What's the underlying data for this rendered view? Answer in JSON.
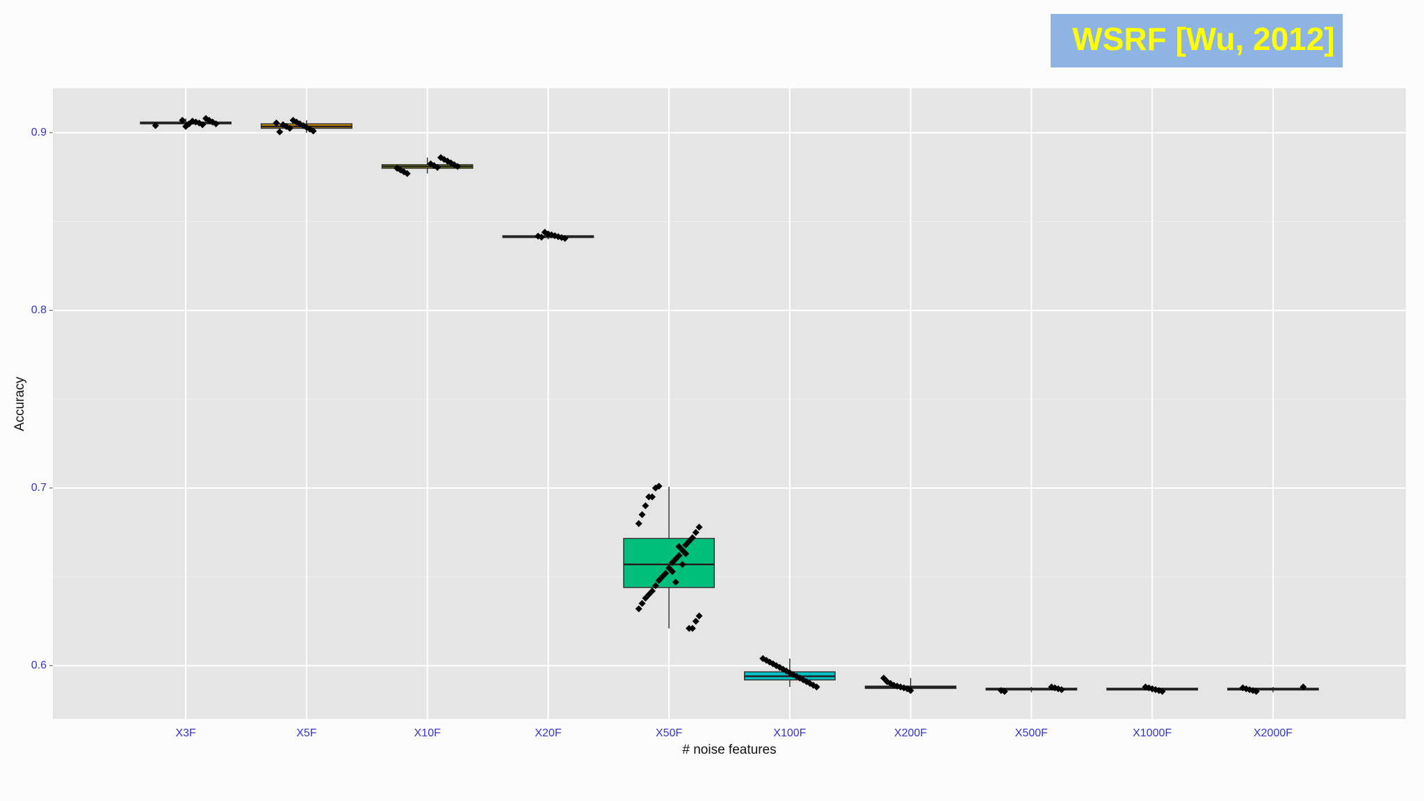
{
  "chart_data": {
    "type": "box",
    "badge": "WSRF [Wu, 2012]",
    "y_label": "Accuracy",
    "x_label": "# noise features",
    "categories": [
      "X3F",
      "X5F",
      "X10F",
      "X20F",
      "X50F",
      "X100F",
      "X200F",
      "X500F",
      "X1000F",
      "X2000F"
    ],
    "ylim": [
      0.57,
      0.925
    ],
    "yticks": [
      0.6,
      0.7,
      0.8,
      0.9
    ],
    "minor_yticks": [
      0.65,
      0.75,
      0.85
    ],
    "grid": true,
    "boxes": [
      {
        "color": "#F8766D",
        "min": 0.903,
        "q1": 0.905,
        "median": 0.9055,
        "q3": 0.906,
        "max": 0.908,
        "points": [
          0.904,
          0.905,
          0.906,
          0.907,
          0.908,
          0.9045,
          0.9055,
          0.906,
          0.9065,
          0.905,
          0.9035,
          0.907
        ]
      },
      {
        "color": "#D89000",
        "min": 0.9,
        "q1": 0.9025,
        "median": 0.9035,
        "q3": 0.905,
        "max": 0.907,
        "points": [
          0.901,
          0.902,
          0.903,
          0.904,
          0.905,
          0.906,
          0.907,
          0.9025,
          0.9035,
          0.9045,
          0.9005,
          0.9055
        ]
      },
      {
        "color": "#A3A500",
        "min": 0.877,
        "q1": 0.88,
        "median": 0.881,
        "q3": 0.882,
        "max": 0.886,
        "points": [
          0.877,
          0.878,
          0.879,
          0.88,
          0.881,
          0.882,
          0.883,
          0.884,
          0.885,
          0.886,
          0.8805,
          0.8815,
          0.8825
        ]
      },
      {
        "color": "#39B600",
        "min": 0.84,
        "q1": 0.841,
        "median": 0.8415,
        "q3": 0.842,
        "max": 0.844,
        "points": [
          0.8405,
          0.841,
          0.8415,
          0.842,
          0.8425,
          0.843,
          0.844,
          0.8412,
          0.8418
        ]
      },
      {
        "color": "#00BF7D",
        "min": 0.621,
        "q1": 0.644,
        "median": 0.657,
        "q3": 0.6716,
        "max": 0.7007,
        "points": [
          0.701,
          0.7,
          0.695,
          0.695,
          0.69,
          0.685,
          0.68,
          0.678,
          0.675,
          0.672,
          0.67,
          0.668,
          0.665,
          0.662,
          0.66,
          0.658,
          0.655,
          0.652,
          0.65,
          0.648,
          0.645,
          0.642,
          0.64,
          0.638,
          0.635,
          0.632,
          0.628,
          0.625,
          0.621,
          0.621,
          0.663,
          0.657,
          0.667,
          0.647,
          0.653
        ]
      },
      {
        "color": "#00BFC4",
        "min": 0.588,
        "q1": 0.592,
        "median": 0.594,
        "q3": 0.5965,
        "max": 0.604,
        "points": [
          0.588,
          0.589,
          0.59,
          0.591,
          0.592,
          0.593,
          0.594,
          0.595,
          0.596,
          0.597,
          0.598,
          0.599,
          0.6,
          0.601,
          0.602,
          0.603,
          0.604
        ]
      },
      {
        "color": "#00B0F6",
        "min": 0.586,
        "q1": 0.5872,
        "median": 0.5878,
        "q3": 0.5885,
        "max": 0.593,
        "points": [
          0.586,
          0.587,
          0.5875,
          0.588,
          0.5885,
          0.589,
          0.59,
          0.591,
          0.593
        ]
      },
      {
        "color": "#9590FF",
        "min": 0.585,
        "q1": 0.5863,
        "median": 0.5868,
        "q3": 0.5873,
        "max": 0.588,
        "points": [
          0.5855,
          0.586,
          0.5865,
          0.587,
          0.5875,
          0.588
        ]
      },
      {
        "color": "#E76BF3",
        "min": 0.585,
        "q1": 0.5863,
        "median": 0.5868,
        "q3": 0.5873,
        "max": 0.588,
        "points": [
          0.5855,
          0.586,
          0.5865,
          0.587,
          0.5875,
          0.588
        ]
      },
      {
        "color": "#FF62BC",
        "min": 0.585,
        "q1": 0.5863,
        "median": 0.5868,
        "q3": 0.5873,
        "max": 0.588,
        "points": [
          0.5855,
          0.586,
          0.5865,
          0.587,
          0.5875,
          0.588
        ]
      }
    ]
  }
}
